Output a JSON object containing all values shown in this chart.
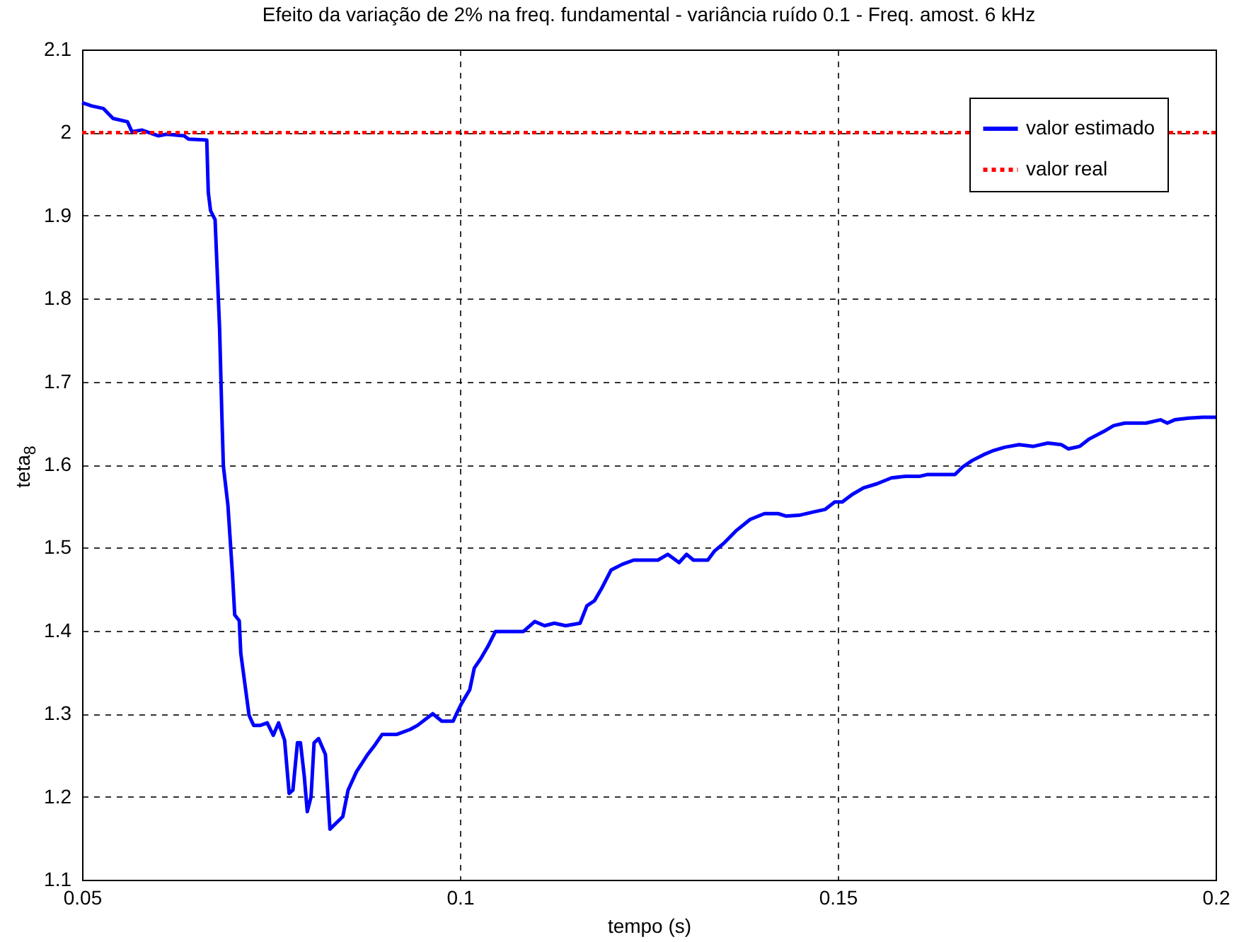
{
  "chart_data": {
    "type": "line",
    "title": "Efeito da variação de 2% na freq. fundamental - variância ruído 0.1 - Freq. amost. 6 kHz",
    "xlabel": "tempo (s)",
    "ylabel": "teta$_{8}$",
    "xlim": [
      0.05,
      0.2
    ],
    "xticks": [
      0.05,
      0.1,
      0.15,
      0.2
    ],
    "ylim": [
      1.1,
      2.1
    ],
    "yticks": [
      1.1,
      1.2,
      1.3,
      1.4,
      1.5,
      1.6,
      1.7,
      1.8,
      1.9,
      2,
      2.1
    ],
    "grid": true,
    "legend": "top right",
    "series": [
      {
        "name": "valor estimado",
        "color": "#0000ff",
        "line_style": "solid",
        "x": [
          0.05,
          0.0513,
          0.0528,
          0.0541,
          0.056,
          0.0566,
          0.0579,
          0.0601,
          0.0612,
          0.0635,
          0.0641,
          0.0665,
          0.0667,
          0.067,
          0.0676,
          0.0682,
          0.0685,
          0.0687,
          0.0693,
          0.0699,
          0.0702,
          0.0708,
          0.071,
          0.0721,
          0.0727,
          0.0736,
          0.0745,
          0.0753,
          0.076,
          0.0768,
          0.0774,
          0.0779,
          0.0785,
          0.0789,
          0.0794,
          0.0798,
          0.0803,
          0.0807,
          0.0813,
          0.0822,
          0.0828,
          0.0837,
          0.0845,
          0.0852,
          0.0863,
          0.0878,
          0.0888,
          0.0897,
          0.0916,
          0.0934,
          0.0944,
          0.0964,
          0.0976,
          0.0991,
          0.0996,
          0.1002,
          0.1013,
          0.1019,
          0.1028,
          0.1037,
          0.1047,
          0.1066,
          0.1084,
          0.1099,
          0.1112,
          0.1125,
          0.114,
          0.1159,
          0.1168,
          0.1178,
          0.1187,
          0.12,
          0.1215,
          0.123,
          0.1262,
          0.1275,
          0.129,
          0.13,
          0.1309,
          0.1328,
          0.1337,
          0.135,
          0.1365,
          0.1384,
          0.1403,
          0.1421,
          0.1432,
          0.1449,
          0.1468,
          0.1483,
          0.1496,
          0.1506,
          0.1519,
          0.1534,
          0.1552,
          0.1571,
          0.159,
          0.1609,
          0.1618,
          0.1637,
          0.1655,
          0.1665,
          0.1678,
          0.1693,
          0.1706,
          0.1721,
          0.174,
          0.1759,
          0.1778,
          0.1796,
          0.1805,
          0.182,
          0.1833,
          0.1852,
          0.1865,
          0.188,
          0.1908,
          0.1927,
          0.1936,
          0.1946,
          0.1964,
          0.1983,
          0.2
        ],
        "values": [
          2.036,
          2.032,
          2.029,
          2.017,
          2.013,
          2.001,
          2.003,
          1.996,
          1.998,
          1.996,
          1.992,
          1.991,
          1.928,
          1.906,
          1.895,
          1.763,
          1.659,
          1.598,
          1.551,
          1.468,
          1.419,
          1.412,
          1.373,
          1.298,
          1.286,
          1.286,
          1.289,
          1.274,
          1.289,
          1.268,
          1.204,
          1.208,
          1.265,
          1.265,
          1.225,
          1.182,
          1.2,
          1.265,
          1.27,
          1.251,
          1.161,
          1.169,
          1.176,
          1.208,
          1.23,
          1.251,
          1.263,
          1.275,
          1.275,
          1.281,
          1.286,
          1.3,
          1.291,
          1.291,
          1.301,
          1.312,
          1.329,
          1.355,
          1.367,
          1.381,
          1.399,
          1.399,
          1.399,
          1.411,
          1.406,
          1.409,
          1.406,
          1.409,
          1.43,
          1.436,
          1.45,
          1.473,
          1.48,
          1.485,
          1.485,
          1.492,
          1.482,
          1.492,
          1.485,
          1.485,
          1.496,
          1.506,
          1.52,
          1.534,
          1.541,
          1.541,
          1.538,
          1.539,
          1.543,
          1.546,
          1.555,
          1.555,
          1.564,
          1.572,
          1.577,
          1.584,
          1.586,
          1.586,
          1.588,
          1.588,
          1.588,
          1.597,
          1.605,
          1.612,
          1.617,
          1.621,
          1.624,
          1.622,
          1.626,
          1.624,
          1.619,
          1.622,
          1.631,
          1.64,
          1.647,
          1.65,
          1.65,
          1.654,
          1.65,
          1.654,
          1.656,
          1.657,
          1.657
        ]
      },
      {
        "name": "valor real",
        "color": "#ff0000",
        "line_style": "dotted",
        "x": [
          0.05,
          0.2
        ],
        "values": [
          2,
          2
        ]
      }
    ]
  }
}
